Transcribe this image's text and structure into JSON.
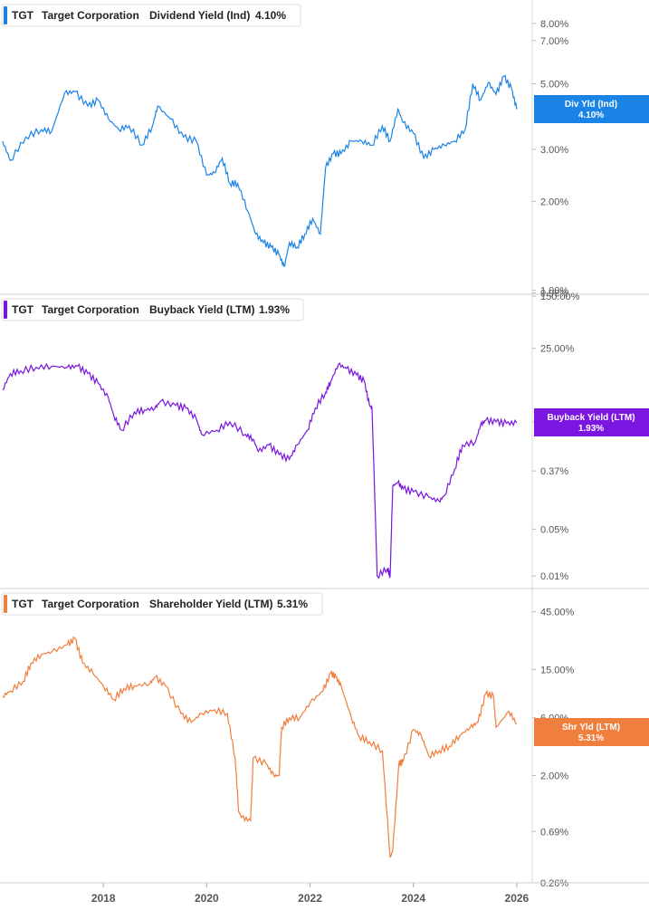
{
  "chart_data": {
    "type": "line",
    "x_ticks": [
      "2018",
      "2020",
      "2022",
      "2024",
      "2026"
    ],
    "panels": [
      {
        "ticker": "TGT",
        "company": "Target Corporation",
        "metric": "Dividend Yield (Ind)",
        "current_value": "4.10%",
        "flag_label": "Div Yld (Ind)",
        "flag_value": "4.10%",
        "color": "#1a84e6",
        "y_scale": "log",
        "y_ticks": [
          "8.00%",
          "7.00%",
          "5.00%",
          "3.00%",
          "2.00%",
          "1.00%",
          "0.98%"
        ],
        "y_tick_values": [
          8.0,
          7.0,
          5.0,
          3.0,
          2.0,
          1.0,
          0.98
        ],
        "ylim": [
          0.97,
          9.6
        ],
        "series": [
          {
            "x": [
              2016.05,
              2016.2,
              2016.5,
              2016.8,
              2017.0,
              2017.25,
              2017.45,
              2017.7,
              2017.9,
              2018.1,
              2018.3,
              2018.5,
              2018.75,
              2018.95,
              2019.05,
              2019.3,
              2019.55,
              2019.8,
              2020.0,
              2020.15,
              2020.3,
              2020.45,
              2020.6,
              2020.8,
              2020.95,
              2021.1,
              2021.25,
              2021.4,
              2021.5,
              2021.6,
              2021.75,
              2021.9,
              2022.05,
              2022.2,
              2022.3,
              2022.45,
              2022.6,
              2022.8,
              2023.0,
              2023.2,
              2023.4,
              2023.55,
              2023.7,
              2023.8,
              2024.0,
              2024.2,
              2024.4,
              2024.6,
              2024.8,
              2025.0,
              2025.15,
              2025.3,
              2025.45,
              2025.6,
              2025.75,
              2025.9,
              2026.0
            ],
            "values": [
              3.2,
              2.75,
              3.3,
              3.5,
              3.45,
              4.65,
              4.7,
              4.2,
              4.4,
              3.8,
              3.5,
              3.6,
              3.1,
              3.6,
              4.2,
              3.8,
              3.3,
              3.2,
              2.45,
              2.5,
              2.8,
              2.3,
              2.3,
              1.85,
              1.55,
              1.45,
              1.4,
              1.32,
              1.2,
              1.45,
              1.4,
              1.55,
              1.75,
              1.55,
              2.6,
              2.9,
              2.9,
              3.2,
              3.2,
              3.1,
              3.6,
              3.2,
              4.1,
              3.7,
              3.4,
              2.8,
              3.0,
              3.1,
              3.2,
              3.5,
              5.0,
              4.4,
              5.05,
              4.6,
              5.3,
              4.8,
              4.1
            ]
          }
        ]
      },
      {
        "ticker": "TGT",
        "company": "Target Corporation",
        "metric": "Buyback Yield (LTM)",
        "current_value": "1.93%",
        "flag_label": "Buyback Yield (LTM)",
        "flag_value": "1.93%",
        "color": "#7a16e0",
        "y_scale": "log",
        "y_ticks": [
          "150.00%",
          "25.00%",
          "2.00%",
          "0.37%",
          "0.05%",
          "0.01%"
        ],
        "y_tick_values": [
          150.0,
          25.0,
          2.0,
          0.37,
          0.05,
          0.01
        ],
        "ylim": [
          0.0065,
          160
        ],
        "series": [
          {
            "x": [
              2016.05,
              2016.2,
              2016.4,
              2016.7,
              2017.0,
              2017.3,
              2017.5,
              2017.7,
              2017.9,
              2018.1,
              2018.2,
              2018.35,
              2018.6,
              2018.8,
              2019.0,
              2019.1,
              2019.4,
              2019.6,
              2019.8,
              2019.9,
              2020.2,
              2020.45,
              2020.75,
              2020.9,
              2021.0,
              2021.2,
              2021.4,
              2021.6,
              2021.75,
              2021.95,
              2022.1,
              2022.3,
              2022.4,
              2022.55,
              2022.7,
              2022.9,
              2023.05,
              2023.15,
              2023.2,
              2023.3,
              2023.5,
              2023.55,
              2023.6,
              2023.7,
              2023.8,
              2024.0,
              2024.3,
              2024.5,
              2024.6,
              2024.8,
              2024.95,
              2025.2,
              2025.3,
              2025.4,
              2025.6,
              2025.8,
              2026.0
            ],
            "values": [
              6.0,
              10.5,
              11.5,
              13.0,
              13.5,
              13.0,
              13.5,
              10.5,
              7.5,
              4.5,
              2.5,
              1.5,
              2.8,
              3.0,
              3.2,
              4.0,
              3.5,
              3.2,
              2.2,
              1.3,
              1.5,
              2.0,
              1.3,
              1.1,
              0.72,
              0.9,
              0.65,
              0.55,
              0.9,
              1.5,
              3.2,
              5.5,
              8.0,
              14.5,
              12.5,
              10.0,
              8.0,
              3.5,
              3.2,
              0.01,
              0.013,
              0.01,
              0.22,
              0.25,
              0.2,
              0.18,
              0.15,
              0.13,
              0.16,
              0.4,
              0.9,
              1.0,
              1.8,
              2.1,
              2.0,
              1.9,
              1.93
            ]
          }
        ]
      },
      {
        "ticker": "TGT",
        "company": "Target Corporation",
        "metric": "Shareholder Yield (LTM)",
        "current_value": "5.31%",
        "flag_label": "Shr Yld (LTM)",
        "flag_value": "5.31%",
        "color": "#f07e3c",
        "y_scale": "log",
        "y_ticks": [
          "45.00%",
          "15.00%",
          "6.00%",
          "2.00%",
          "0.69%",
          "0.26%"
        ],
        "y_tick_values": [
          45.0,
          15.0,
          6.0,
          2.0,
          0.69,
          0.26
        ],
        "ylim": [
          0.26,
          70
        ],
        "series": [
          {
            "x": [
              2016.05,
              2016.2,
              2016.45,
              2016.6,
              2016.8,
              2017.0,
              2017.3,
              2017.45,
              2017.6,
              2017.8,
              2018.0,
              2018.2,
              2018.4,
              2018.6,
              2018.9,
              2019.0,
              2019.2,
              2019.5,
              2019.7,
              2019.9,
              2020.15,
              2020.4,
              2020.55,
              2020.62,
              2020.68,
              2020.85,
              2020.9,
              2021.15,
              2021.3,
              2021.4,
              2021.45,
              2021.6,
              2021.8,
              2022.0,
              2022.25,
              2022.4,
              2022.5,
              2022.6,
              2022.8,
              2022.95,
              2023.15,
              2023.4,
              2023.55,
              2023.6,
              2023.72,
              2023.8,
              2024.0,
              2024.15,
              2024.3,
              2024.5,
              2024.7,
              2024.9,
              2025.1,
              2025.25,
              2025.4,
              2025.55,
              2025.6,
              2025.85,
              2026.0
            ],
            "values": [
              9.0,
              10.0,
              12.0,
              17.0,
              20.0,
              21.0,
              24.0,
              27.0,
              17.0,
              14.0,
              11.0,
              8.5,
              10.5,
              11.0,
              11.5,
              13.0,
              11.0,
              6.5,
              5.5,
              6.5,
              7.0,
              6.5,
              2.8,
              1.0,
              0.9,
              0.85,
              2.8,
              2.5,
              2.0,
              2.0,
              5.0,
              6.0,
              6.0,
              8.0,
              10.0,
              14.0,
              13.0,
              11.0,
              6.0,
              4.2,
              3.8,
              3.2,
              0.42,
              0.48,
              2.5,
              2.6,
              4.8,
              4.3,
              2.9,
              3.2,
              3.5,
              4.3,
              5.0,
              5.5,
              9.5,
              9.0,
              5.0,
              6.8,
              5.31
            ]
          }
        ]
      }
    ]
  }
}
